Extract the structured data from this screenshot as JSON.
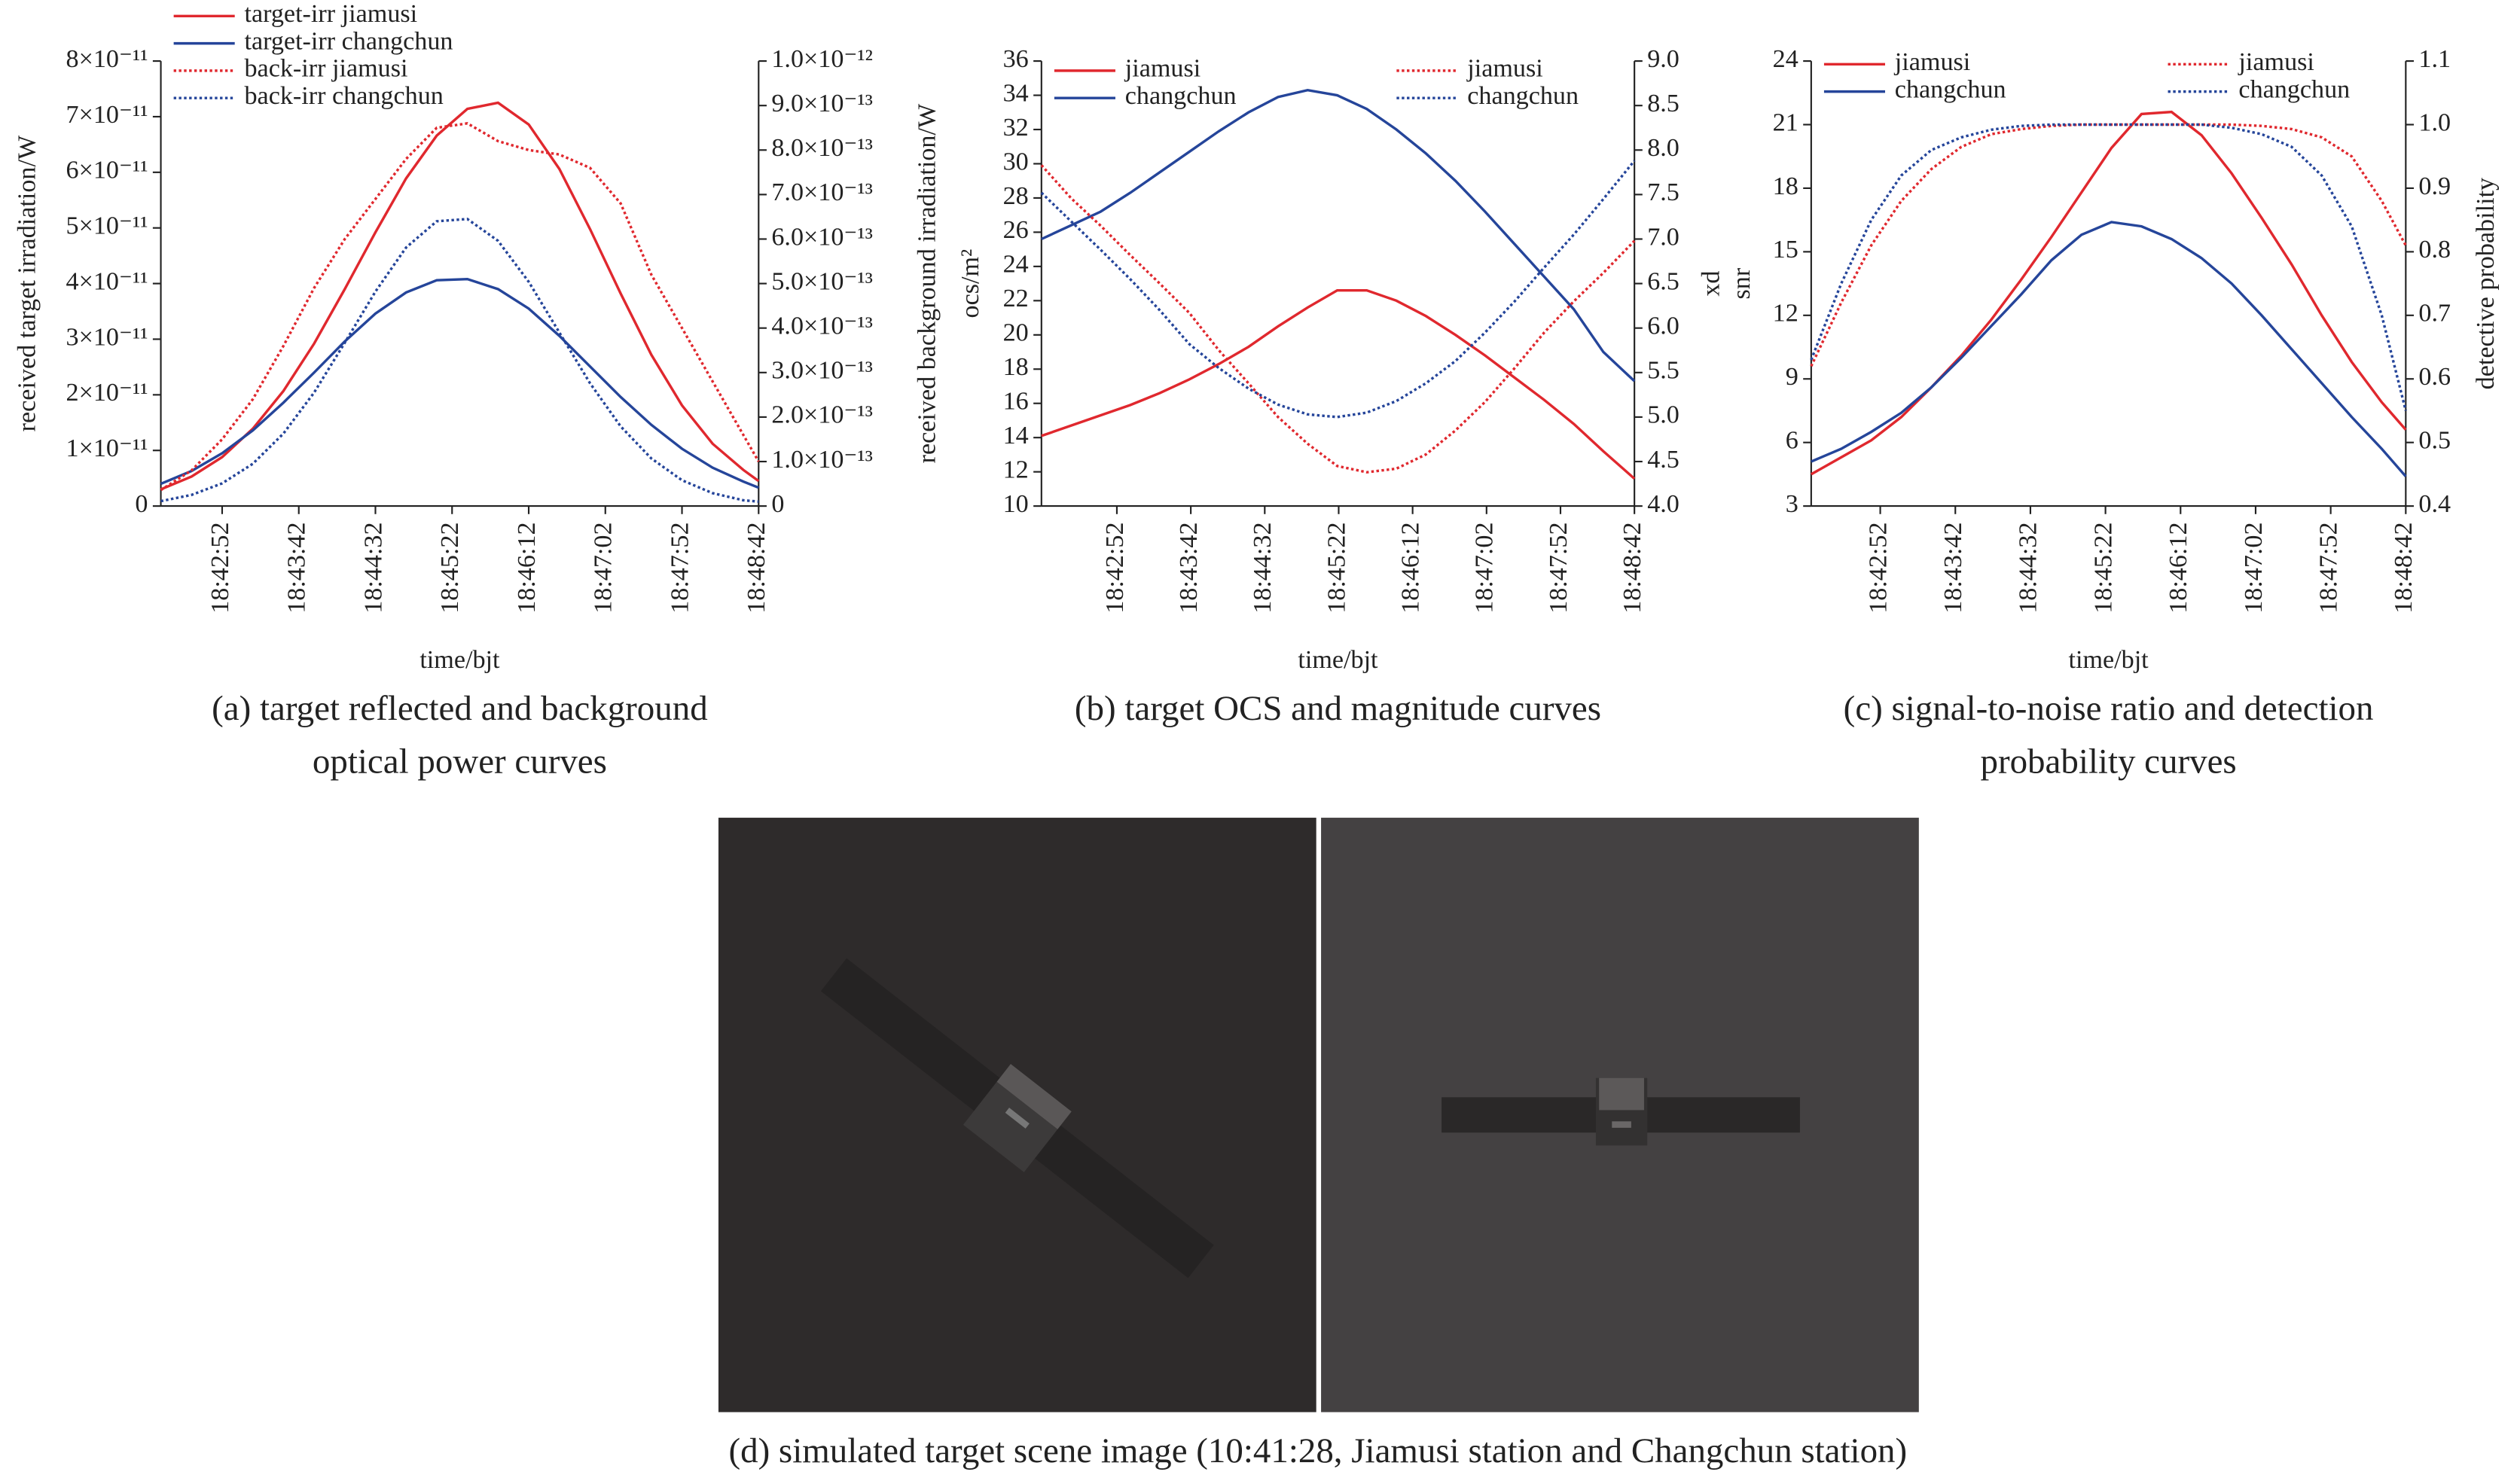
{
  "chart_data": [
    {
      "type": "line",
      "caption": [
        "(a) target reflected and background",
        "optical power curves"
      ],
      "xlabel": "time/bjt",
      "ylabel": "received target irradiation/W",
      "y2label": "received background irradiation/W",
      "x": [
        67332,
        67352,
        67372,
        67392,
        67412,
        67432,
        67452,
        67472,
        67492,
        67512,
        67532,
        67552,
        67572,
        67592,
        67612,
        67632,
        67652,
        67672,
        67692,
        67712,
        67722
      ],
      "xlim": [
        67332,
        67722
      ],
      "xticks": [
        {
          "value": 67372,
          "label": "18:42:52"
        },
        {
          "value": 67422,
          "label": "18:43:42"
        },
        {
          "value": 67472,
          "label": "18:44:32"
        },
        {
          "value": 67522,
          "label": "18:45:22"
        },
        {
          "value": 67572,
          "label": "18:46:12"
        },
        {
          "value": 67622,
          "label": "18:47:02"
        },
        {
          "value": 67672,
          "label": "18:47:52"
        },
        {
          "value": 67722,
          "label": "18:48:42"
        }
      ],
      "ylim": [
        0,
        8e-11
      ],
      "yticks": [
        0,
        {
          "value": 1e-11,
          "label": "1×10⁻¹¹"
        },
        {
          "value": 2e-11,
          "label": "2×10⁻¹¹"
        },
        {
          "value": 3e-11,
          "label": "3×10⁻¹¹"
        },
        {
          "value": 4e-11,
          "label": "4×10⁻¹¹"
        },
        {
          "value": 5e-11,
          "label": "5×10⁻¹¹"
        },
        {
          "value": 6e-11,
          "label": "6×10⁻¹¹"
        },
        {
          "value": 7e-11,
          "label": "7×10⁻¹¹"
        },
        {
          "value": 8e-11,
          "label": "8×10⁻¹¹"
        }
      ],
      "y2lim": [
        0,
        1e-12
      ],
      "y2ticks": [
        0,
        {
          "value": 1e-13,
          "label": "1.0×10⁻¹³"
        },
        {
          "value": 2e-13,
          "label": "2.0×10⁻¹³"
        },
        {
          "value": 3e-13,
          "label": "3.0×10⁻¹³"
        },
        {
          "value": 4e-13,
          "label": "4.0×10⁻¹³"
        },
        {
          "value": 5e-13,
          "label": "5.0×10⁻¹³"
        },
        {
          "value": 6e-13,
          "label": "6.0×10⁻¹³"
        },
        {
          "value": 7e-13,
          "label": "7.0×10⁻¹³"
        },
        {
          "value": 8e-13,
          "label": "8.0×10⁻¹³"
        },
        {
          "value": 9e-13,
          "label": "9.0×10⁻¹³"
        },
        {
          "value": 1e-12,
          "label": "1.0×10⁻¹²"
        }
      ],
      "legend": "upper left",
      "series": [
        {
          "name": "target-irr jiamusi",
          "color": "#e0282e",
          "style": "solid",
          "values": [
            3e-12,
            5.3e-12,
            8.8e-12,
            1.39e-11,
            2.07e-11,
            2.92e-11,
            3.9e-11,
            4.92e-11,
            5.89e-11,
            6.66e-11,
            7.14e-11,
            7.25e-11,
            6.86e-11,
            6.06e-11,
            4.98e-11,
            3.82e-11,
            2.72e-11,
            1.81e-11,
            1.12e-11,
            6.5e-12,
            4.5e-12
          ]
        },
        {
          "name": "target-irr changchun",
          "color": "#25459a",
          "style": "solid",
          "values": [
            4e-12,
            6.3e-12,
            9.5e-12,
            1.36e-11,
            1.86e-11,
            2.4e-11,
            2.96e-11,
            3.46e-11,
            3.84e-11,
            4.06e-11,
            4.08e-11,
            3.9e-11,
            3.55e-11,
            3.06e-11,
            2.51e-11,
            1.96e-11,
            1.46e-11,
            1.03e-11,
            6.9e-12,
            4.4e-12,
            3.3e-12
          ]
        },
        {
          "name": "back-irr jiamusi",
          "color": "#e0282e",
          "style": "dotted",
          "axis": "y2",
          "values": [
            3.6e-14,
            8e-14,
            1.5e-13,
            2.4e-13,
            3.6e-13,
            4.9e-13,
            6e-13,
            6.9e-13,
            7.8e-13,
            8.5e-13,
            8.6e-13,
            8.2e-13,
            8e-13,
            7.9e-13,
            7.6e-13,
            6.8e-13,
            5.2e-13,
            4e-13,
            2.8e-13,
            1.6e-13,
            1e-13
          ]
        },
        {
          "name": "back-irr changchun",
          "color": "#25459a",
          "style": "dotted",
          "axis": "y2",
          "values": [
            1.1e-14,
            2.5e-14,
            5.1e-14,
            9.5e-14,
            1.63e-13,
            2.55e-13,
            3.67e-13,
            4.82e-13,
            5.81e-13,
            6.4e-13,
            6.45e-13,
            5.96e-13,
            5.04e-13,
            3.9e-13,
            2.76e-13,
            1.79e-13,
            1.07e-13,
            5.8e-14,
            2.9e-14,
            1.3e-14,
            1e-14
          ]
        }
      ]
    },
    {
      "type": "line",
      "caption": [
        "(b) target OCS and magnitude curves"
      ],
      "xlabel": "time/bjt",
      "ylabel": "ocs/m²",
      "y2label": "xd",
      "x": [
        67321,
        67341,
        67361,
        67381,
        67401,
        67421,
        67441,
        67461,
        67481,
        67501,
        67521,
        67541,
        67561,
        67581,
        67601,
        67621,
        67641,
        67661,
        67681,
        67701,
        67722
      ],
      "xlim": [
        67321,
        67722
      ],
      "xticks": [
        {
          "value": 67372,
          "label": "18:42:52"
        },
        {
          "value": 67422,
          "label": "18:43:42"
        },
        {
          "value": 67472,
          "label": "18:44:32"
        },
        {
          "value": 67522,
          "label": "18:45:22"
        },
        {
          "value": 67572,
          "label": "18:46:12"
        },
        {
          "value": 67622,
          "label": "18:47:02"
        },
        {
          "value": 67672,
          "label": "18:47:52"
        },
        {
          "value": 67722,
          "label": "18:48:42"
        }
      ],
      "ylim": [
        10,
        36
      ],
      "yticks": [
        10,
        12,
        14,
        16,
        18,
        20,
        22,
        24,
        26,
        28,
        30,
        32,
        34,
        36
      ],
      "y2lim": [
        4,
        9
      ],
      "y2ticks": [
        {
          "value": 4,
          "label": "4.0"
        },
        4.5,
        {
          "value": 5,
          "label": "5.0"
        },
        5.5,
        {
          "value": 6,
          "label": "6.0"
        },
        6.5,
        {
          "value": 7,
          "label": "7.0"
        },
        7.5,
        {
          "value": 8,
          "label": "8.0"
        },
        8.5,
        {
          "value": 9,
          "label": "9.0"
        }
      ],
      "legend": "upper left",
      "legend2": "upper right",
      "series": [
        {
          "name": "jiamusi",
          "color": "#e0282e",
          "style": "solid",
          "values": [
            14.1,
            14.7,
            15.3,
            15.9,
            16.6,
            17.4,
            18.3,
            19.3,
            20.5,
            21.6,
            22.6,
            22.6,
            22.0,
            21.1,
            20.0,
            18.8,
            17.5,
            16.2,
            14.8,
            13.2,
            11.6
          ]
        },
        {
          "name": "changchun",
          "color": "#25459a",
          "style": "solid",
          "values": [
            25.6,
            26.4,
            27.2,
            28.3,
            29.5,
            30.7,
            31.9,
            33.0,
            33.9,
            34.3,
            34.0,
            33.2,
            32.0,
            30.6,
            29.0,
            27.2,
            25.3,
            23.4,
            21.5,
            19.0,
            17.3
          ]
        },
        {
          "name": "jiamusi",
          "color": "#e0282e",
          "style": "dotted",
          "axis": "y2",
          "values": [
            7.83,
            7.46,
            7.15,
            6.82,
            6.5,
            6.17,
            5.75,
            5.38,
            5.0,
            4.7,
            4.45,
            4.38,
            4.42,
            4.58,
            4.85,
            5.17,
            5.55,
            5.95,
            6.3,
            6.62,
            6.98
          ]
        },
        {
          "name": "changchun",
          "color": "#25459a",
          "style": "dotted",
          "axis": "y2",
          "values": [
            7.52,
            7.2,
            6.88,
            6.55,
            6.2,
            5.82,
            5.55,
            5.32,
            5.14,
            5.03,
            5.0,
            5.05,
            5.18,
            5.38,
            5.63,
            5.95,
            6.3,
            6.68,
            7.05,
            7.45,
            7.88
          ]
        }
      ]
    },
    {
      "type": "line",
      "caption": [
        "(c) signal-to-noise ratio and detection",
        "probability curves"
      ],
      "xlabel": "time/bjt",
      "ylabel": "snr",
      "y2label": "detective probability",
      "x": [
        67326,
        67346,
        67366,
        67386,
        67406,
        67426,
        67446,
        67466,
        67486,
        67506,
        67526,
        67546,
        67566,
        67586,
        67606,
        67626,
        67646,
        67666,
        67686,
        67706,
        67722
      ],
      "xlim": [
        67326,
        67722
      ],
      "xticks": [
        {
          "value": 67372,
          "label": "18:42:52"
        },
        {
          "value": 67422,
          "label": "18:43:42"
        },
        {
          "value": 67472,
          "label": "18:44:32"
        },
        {
          "value": 67522,
          "label": "18:45:22"
        },
        {
          "value": 67572,
          "label": "18:46:12"
        },
        {
          "value": 67622,
          "label": "18:47:02"
        },
        {
          "value": 67672,
          "label": "18:47:52"
        },
        {
          "value": 67722,
          "label": "18:48:42"
        }
      ],
      "ylim": [
        3,
        24
      ],
      "yticks": [
        3,
        6,
        9,
        12,
        15,
        18,
        21,
        24
      ],
      "y2lim": [
        0.4,
        1.1
      ],
      "y2ticks": [
        0.4,
        0.5,
        0.6,
        0.7,
        0.8,
        0.9,
        {
          "value": 1,
          "label": "1.0"
        },
        1.1
      ],
      "legend": "upper left",
      "legend2": "upper right",
      "series": [
        {
          "name": "jiamusi",
          "color": "#e0282e",
          "style": "solid",
          "values": [
            4.5,
            5.3,
            6.1,
            7.2,
            8.6,
            10.1,
            11.8,
            13.7,
            15.7,
            17.8,
            19.9,
            21.5,
            21.6,
            20.5,
            18.7,
            16.6,
            14.4,
            12.0,
            9.8,
            7.9,
            6.6
          ]
        },
        {
          "name": "changchun",
          "color": "#25459a",
          "style": "solid",
          "values": [
            5.1,
            5.7,
            6.5,
            7.4,
            8.6,
            10.0,
            11.5,
            13.0,
            14.6,
            15.8,
            16.4,
            16.2,
            15.6,
            14.7,
            13.5,
            12.0,
            10.4,
            8.8,
            7.2,
            5.7,
            4.4
          ]
        },
        {
          "name": "jiamusi",
          "color": "#e0282e",
          "style": "dotted",
          "axis": "y2",
          "values": [
            0.62,
            0.72,
            0.81,
            0.88,
            0.93,
            0.965,
            0.985,
            0.993,
            0.998,
            1.0,
            1.0,
            1.0,
            1.0,
            1.0,
            1.0,
            0.998,
            0.993,
            0.98,
            0.95,
            0.88,
            0.81
          ]
        },
        {
          "name": "changchun",
          "color": "#25459a",
          "style": "dotted",
          "axis": "y2",
          "values": [
            0.63,
            0.75,
            0.85,
            0.92,
            0.96,
            0.98,
            0.992,
            0.998,
            1.0,
            1.0,
            1.0,
            1.0,
            1.0,
            1.0,
            0.995,
            0.985,
            0.965,
            0.92,
            0.84,
            0.7,
            0.55
          ]
        }
      ]
    }
  ],
  "scene": {
    "caption": "(d) simulated target scene image (10:41:28, Jiamusi station and Changchun station)"
  }
}
